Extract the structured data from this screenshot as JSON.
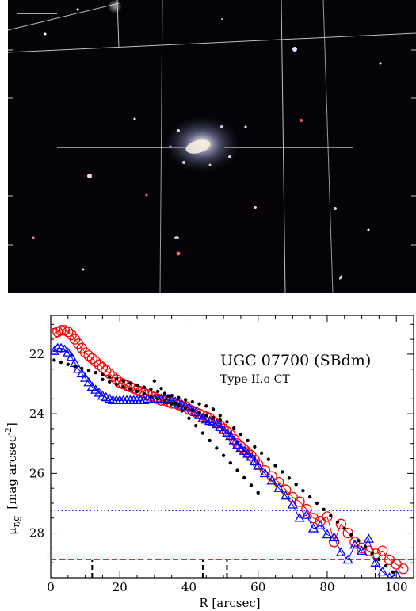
{
  "image_panel": {
    "description": "SDSS color image of galaxy UGC 07700",
    "background_color": "#050307"
  },
  "chart_data": {
    "type": "scatter",
    "title": "UGC 07700 (SBdm)",
    "subtitle": "Type II.o-CT",
    "xlabel": "R [arcsec]",
    "ylabel_main": "μ",
    "ylabel_sub": "r,g",
    "ylabel_unit": "[mag arcsec",
    "ylabel_exp": "-2",
    "ylabel_close": "]",
    "xlim": [
      0,
      105
    ],
    "ylim": [
      29.5,
      20.7
    ],
    "x_ticks": [
      0,
      20,
      40,
      60,
      80,
      100
    ],
    "y_ticks": [
      22,
      24,
      26,
      28
    ],
    "x_tick_labels": [
      "0",
      "20",
      "40",
      "60",
      "80",
      "100"
    ],
    "y_tick_labels": [
      "22",
      "24",
      "26",
      "28"
    ],
    "colors": {
      "r_band": "#ff0000",
      "g_band": "#0000ff",
      "fit": "#000000",
      "sky_g": "#0000ff",
      "sky_r": "#ff0000"
    },
    "series": [
      {
        "band": "r",
        "marker": "circle",
        "x": [
          1,
          2,
          3,
          4,
          5,
          6,
          7,
          8,
          9,
          10,
          11,
          12,
          13,
          14,
          15,
          16,
          17,
          18,
          19,
          20,
          21,
          22,
          23,
          24,
          25,
          26,
          27,
          28,
          29,
          30,
          31,
          32,
          33,
          34,
          35,
          36,
          37,
          38,
          39,
          40,
          41,
          42,
          43,
          44,
          45,
          46,
          47,
          48,
          49,
          50,
          51,
          52,
          53,
          54,
          55,
          56,
          57,
          58,
          59,
          60,
          62,
          64,
          66,
          68,
          70,
          72,
          74,
          76,
          78,
          80,
          82,
          84,
          86,
          88,
          90,
          92,
          94,
          96,
          98,
          100,
          102
        ],
        "y": [
          21.3,
          21.25,
          21.2,
          21.2,
          21.25,
          21.35,
          21.5,
          21.65,
          21.8,
          21.95,
          22.05,
          22.15,
          22.25,
          22.35,
          22.45,
          22.55,
          22.65,
          22.75,
          22.85,
          22.95,
          23.0,
          23.05,
          23.1,
          23.15,
          23.2,
          23.25,
          23.3,
          23.35,
          23.4,
          23.45,
          23.5,
          23.55,
          23.55,
          23.6,
          23.65,
          23.65,
          23.7,
          23.75,
          23.75,
          23.85,
          23.9,
          23.95,
          24.0,
          24.05,
          24.1,
          24.15,
          24.25,
          24.3,
          24.4,
          24.5,
          24.6,
          24.7,
          24.85,
          25.0,
          25.1,
          25.2,
          25.3,
          25.4,
          25.55,
          25.7,
          25.9,
          26.1,
          26.3,
          26.55,
          26.8,
          26.95,
          27.2,
          27.5,
          27.6,
          27.45,
          28.3,
          27.7,
          28.0,
          28.3,
          28.5,
          28.6,
          28.7,
          28.6,
          28.9,
          29.05,
          29.2
        ]
      },
      {
        "band": "g",
        "marker": "triangle",
        "x": [
          1,
          2,
          3,
          4,
          5,
          6,
          7,
          8,
          9,
          10,
          11,
          12,
          13,
          14,
          15,
          16,
          17,
          18,
          19,
          20,
          21,
          22,
          23,
          24,
          25,
          26,
          27,
          28,
          29,
          30,
          31,
          32,
          33,
          34,
          35,
          36,
          37,
          38,
          39,
          40,
          41,
          42,
          43,
          44,
          45,
          46,
          47,
          48,
          49,
          50,
          51,
          52,
          53,
          54,
          55,
          56,
          57,
          58,
          59,
          60,
          62,
          64,
          66,
          68,
          70,
          72,
          74,
          76,
          78,
          80,
          82,
          84,
          86,
          88,
          90,
          92,
          94,
          96,
          98,
          100
        ],
        "y": [
          21.9,
          21.8,
          21.8,
          21.85,
          21.95,
          22.1,
          22.3,
          22.5,
          22.65,
          22.8,
          22.95,
          23.1,
          23.2,
          23.3,
          23.4,
          23.45,
          23.5,
          23.55,
          23.55,
          23.55,
          23.55,
          23.55,
          23.55,
          23.55,
          23.55,
          23.55,
          23.55,
          23.5,
          23.5,
          23.5,
          23.5,
          23.5,
          23.5,
          23.55,
          23.55,
          23.6,
          23.65,
          23.7,
          23.75,
          23.8,
          23.9,
          23.95,
          24.05,
          24.15,
          24.2,
          24.25,
          24.3,
          24.35,
          24.45,
          24.55,
          24.65,
          24.75,
          24.9,
          25.05,
          25.15,
          25.25,
          25.35,
          25.45,
          25.6,
          25.75,
          26.0,
          26.25,
          26.5,
          26.75,
          27.05,
          27.5,
          27.4,
          27.85,
          27.75,
          28.05,
          28.15,
          28.65,
          28.9,
          28.4,
          28.6,
          28.2,
          29.0,
          29.3,
          29.5,
          29.4
        ]
      },
      {
        "band": "fit",
        "marker": "dot",
        "x": [
          1,
          3,
          5,
          7,
          9,
          11,
          13,
          15,
          17,
          19,
          21,
          23,
          25,
          27,
          29,
          31,
          33,
          35,
          37,
          39,
          41,
          43,
          45,
          47,
          49,
          51,
          53,
          55,
          57,
          59,
          61,
          63,
          65,
          67,
          69,
          71,
          73,
          75,
          77,
          79,
          81,
          83,
          85,
          87,
          89,
          91,
          93,
          95,
          97,
          99
        ],
        "y": [
          22.2,
          22.27,
          22.34,
          22.41,
          22.48,
          22.55,
          22.62,
          22.69,
          22.76,
          22.83,
          22.9,
          22.97,
          23.04,
          23.11,
          23.18,
          23.25,
          23.32,
          23.39,
          23.46,
          23.53,
          23.6,
          23.67,
          23.74,
          23.85,
          24.06,
          24.27,
          24.48,
          24.69,
          24.9,
          25.11,
          25.32,
          25.53,
          25.74,
          25.95,
          26.16,
          26.37,
          26.58,
          26.79,
          27.0,
          27.21,
          27.42,
          27.63,
          27.84,
          28.05,
          28.26,
          28.47,
          28.68,
          28.89,
          29.1,
          29.31
        ]
      },
      {
        "band": "fit_inner",
        "marker": "dot",
        "x": [
          15,
          17,
          19,
          21,
          23,
          25,
          27,
          29,
          31,
          33,
          35,
          37,
          39,
          41,
          43,
          45,
          47,
          49
        ],
        "y": [
          22.85,
          22.93,
          23.01,
          23.09,
          23.17,
          23.25,
          23.33,
          23.41,
          23.49,
          23.57,
          23.65,
          23.73,
          23.81,
          23.89,
          23.97,
          24.05,
          24.13,
          24.21
        ]
      },
      {
        "band": "fit_outer",
        "marker": "dot",
        "x": [
          30,
          32,
          34,
          36,
          38,
          40,
          42,
          44,
          46,
          48,
          50,
          52,
          54,
          56,
          58,
          60
        ],
        "y": [
          22.9,
          23.15,
          23.4,
          23.65,
          23.9,
          24.15,
          24.4,
          24.65,
          24.9,
          25.15,
          25.4,
          25.65,
          25.9,
          26.15,
          26.4,
          26.65
        ]
      }
    ],
    "horizontal_lines": [
      {
        "y": 27.25,
        "color": "#0000ff",
        "style": "dotted"
      },
      {
        "y": 28.9,
        "color": "#ff0000",
        "style": "dashed"
      }
    ],
    "break_markers": [
      12,
      44,
      51,
      94
    ]
  }
}
